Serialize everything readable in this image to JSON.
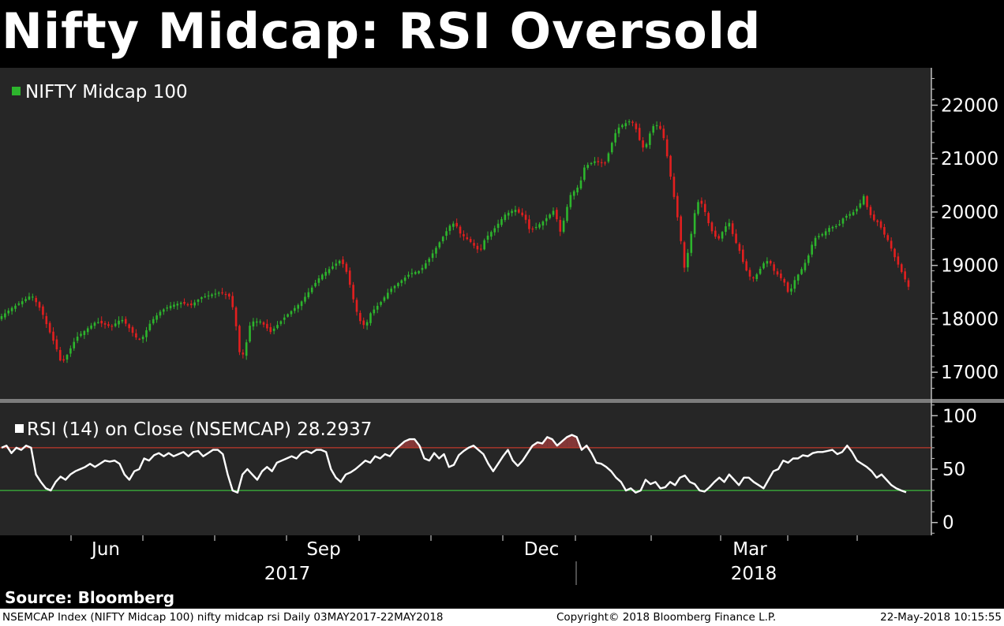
{
  "title": "Nifty Midcap: RSI Oversold",
  "source": "Source: Bloomberg",
  "footer": {
    "left": "NSEMCAP Index (NIFTY Midcap 100) nifty midcap rsi  Daily 03MAY2017-22MAY2018",
    "center": "Copyright© 2018 Bloomberg Finance L.P.",
    "right": "22-May-2018 10:15:55"
  },
  "colors": {
    "background": "#000000",
    "panel": "#262626",
    "up": "#2db52d",
    "down": "#e21f1f",
    "rsi_line": "#ffffff",
    "overbought_line": "#c0392b",
    "oversold_line": "#3cb83c",
    "fill_over": "#8f3a3a"
  },
  "chart_data": [
    {
      "type": "candlestick",
      "legend": "NIFTY Midcap 100",
      "ylim": [
        16500,
        22700
      ],
      "yticks": [
        "22000",
        "21000",
        "20000",
        "19000",
        "18000",
        "17000"
      ],
      "start_date": "03MAY2017",
      "end_date": "22MAY2018",
      "close_path": [
        [
          0,
          18050
        ],
        [
          2,
          18200
        ],
        [
          5,
          18380
        ],
        [
          6,
          18450
        ],
        [
          8,
          18150
        ],
        [
          9,
          17900
        ],
        [
          11,
          17450
        ],
        [
          12,
          17150
        ],
        [
          13,
          17300
        ],
        [
          15,
          17650
        ],
        [
          17,
          17800
        ],
        [
          19,
          17950
        ],
        [
          22,
          17850
        ],
        [
          24,
          18000
        ],
        [
          25,
          17900
        ],
        [
          27,
          17650
        ],
        [
          28,
          17600
        ],
        [
          30,
          17950
        ],
        [
          32,
          18150
        ],
        [
          34,
          18250
        ],
        [
          36,
          18300
        ],
        [
          38,
          18250
        ],
        [
          40,
          18400
        ],
        [
          42,
          18450
        ],
        [
          44,
          18500
        ],
        [
          46,
          18400
        ],
        [
          47,
          17900
        ],
        [
          48,
          17200
        ],
        [
          49,
          17500
        ],
        [
          50,
          17950
        ],
        [
          52,
          17950
        ],
        [
          54,
          17750
        ],
        [
          55,
          17850
        ],
        [
          57,
          18050
        ],
        [
          60,
          18300
        ],
        [
          62,
          18550
        ],
        [
          64,
          18800
        ],
        [
          66,
          18950
        ],
        [
          68,
          19100
        ],
        [
          69,
          18950
        ],
        [
          70,
          18600
        ],
        [
          71,
          18200
        ],
        [
          72,
          17950
        ],
        [
          73,
          17850
        ],
        [
          74,
          18100
        ],
        [
          76,
          18300
        ],
        [
          78,
          18550
        ],
        [
          80,
          18700
        ],
        [
          82,
          18850
        ],
        [
          84,
          18900
        ],
        [
          86,
          19150
        ],
        [
          88,
          19450
        ],
        [
          90,
          19750
        ],
        [
          91,
          19800
        ],
        [
          92,
          19600
        ],
        [
          94,
          19450
        ],
        [
          95,
          19350
        ],
        [
          96,
          19250
        ],
        [
          97,
          19500
        ],
        [
          99,
          19700
        ],
        [
          101,
          19950
        ],
        [
          103,
          20050
        ],
        [
          105,
          19900
        ],
        [
          106,
          19650
        ],
        [
          107,
          19700
        ],
        [
          109,
          19850
        ],
        [
          111,
          20050
        ],
        [
          112,
          19600
        ],
        [
          113,
          19900
        ],
        [
          114,
          20300
        ],
        [
          116,
          20500
        ],
        [
          117,
          20850
        ],
        [
          119,
          20950
        ],
        [
          121,
          20900
        ],
        [
          122,
          21150
        ],
        [
          123,
          21450
        ],
        [
          124,
          21600
        ],
        [
          126,
          21700
        ],
        [
          127,
          21650
        ],
        [
          128,
          21350
        ],
        [
          129,
          21150
        ],
        [
          130,
          21450
        ],
        [
          131,
          21650
        ],
        [
          132,
          21600
        ],
        [
          133,
          21350
        ],
        [
          134,
          20800
        ],
        [
          135,
          20250
        ],
        [
          136,
          19700
        ],
        [
          137,
          18950
        ],
        [
          138,
          19350
        ],
        [
          139,
          19950
        ],
        [
          140,
          20250
        ],
        [
          141,
          20050
        ],
        [
          142,
          19750
        ],
        [
          143,
          19550
        ],
        [
          144,
          19500
        ],
        [
          145,
          19700
        ],
        [
          146,
          19800
        ],
        [
          147,
          19500
        ],
        [
          148,
          19300
        ],
        [
          149,
          19000
        ],
        [
          150,
          18800
        ],
        [
          151,
          18750
        ],
        [
          152,
          18900
        ],
        [
          153,
          19050
        ],
        [
          154,
          19100
        ],
        [
          155,
          18900
        ],
        [
          156,
          18800
        ],
        [
          157,
          18700
        ],
        [
          158,
          18450
        ],
        [
          159,
          18700
        ],
        [
          160,
          18850
        ],
        [
          161,
          19000
        ],
        [
          162,
          19200
        ],
        [
          163,
          19500
        ],
        [
          165,
          19600
        ],
        [
          166,
          19700
        ],
        [
          168,
          19750
        ],
        [
          169,
          19900
        ],
        [
          170,
          19950
        ],
        [
          171,
          20000
        ],
        [
          172,
          20100
        ],
        [
          173,
          20300
        ],
        [
          174,
          20000
        ],
        [
          175,
          19850
        ],
        [
          176,
          19800
        ],
        [
          177,
          19600
        ],
        [
          178,
          19450
        ],
        [
          179,
          19200
        ],
        [
          180,
          19000
        ],
        [
          181,
          18800
        ],
        [
          182,
          18600
        ]
      ]
    },
    {
      "type": "line",
      "legend": "RSI (14) on Close (NSEMCAP) 28.2937",
      "ylim": [
        -12,
        112
      ],
      "yticks": [
        "100",
        "50",
        "0"
      ],
      "overbought": 70,
      "oversold": 30,
      "values": [
        70,
        72,
        65,
        70,
        68,
        72,
        70,
        45,
        38,
        32,
        30,
        38,
        43,
        40,
        45,
        48,
        50,
        52,
        55,
        52,
        55,
        58,
        57,
        58,
        55,
        45,
        40,
        48,
        50,
        60,
        58,
        63,
        65,
        62,
        65,
        62,
        64,
        66,
        62,
        66,
        67,
        62,
        65,
        68,
        68,
        64,
        45,
        30,
        28,
        45,
        50,
        45,
        40,
        48,
        52,
        48,
        56,
        58,
        60,
        62,
        60,
        65,
        67,
        65,
        68,
        68,
        66,
        50,
        42,
        38,
        45,
        47,
        50,
        54,
        58,
        56,
        62,
        60,
        64,
        62,
        68,
        72,
        76,
        78,
        78,
        72,
        60,
        58,
        65,
        60,
        64,
        52,
        54,
        63,
        67,
        70,
        72,
        68,
        64,
        55,
        48,
        55,
        62,
        68,
        58,
        53,
        58,
        65,
        72,
        75,
        74,
        80,
        78,
        72,
        76,
        80,
        82,
        80,
        68,
        72,
        65,
        56,
        55,
        52,
        48,
        42,
        38,
        30,
        32,
        28,
        30,
        40,
        36,
        38,
        32,
        33,
        38,
        35,
        42,
        44,
        38,
        36,
        30,
        29,
        33,
        38,
        42,
        38,
        45,
        40,
        35,
        42,
        42,
        38,
        35,
        32,
        40,
        48,
        50,
        58,
        56,
        60,
        60,
        63,
        62,
        65,
        66,
        66,
        67,
        68,
        64,
        66,
        72,
        66,
        58,
        55,
        52,
        48,
        42,
        45,
        40,
        35,
        32,
        30,
        28.29
      ]
    }
  ],
  "x_axis": {
    "months": [
      "Jun",
      "Sep",
      "Dec",
      "Mar"
    ],
    "years": [
      "2017",
      "2018"
    ]
  }
}
